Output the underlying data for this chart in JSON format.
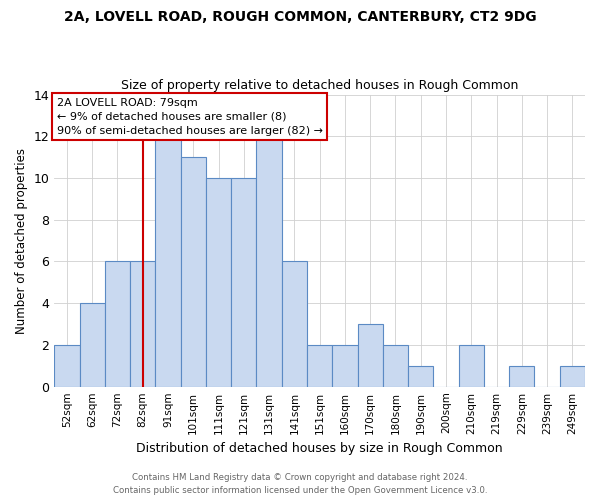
{
  "title": "2A, LOVELL ROAD, ROUGH COMMON, CANTERBURY, CT2 9DG",
  "subtitle": "Size of property relative to detached houses in Rough Common",
  "xlabel": "Distribution of detached houses by size in Rough Common",
  "ylabel": "Number of detached properties",
  "bar_labels": [
    "52sqm",
    "62sqm",
    "72sqm",
    "82sqm",
    "91sqm",
    "101sqm",
    "111sqm",
    "121sqm",
    "131sqm",
    "141sqm",
    "151sqm",
    "160sqm",
    "170sqm",
    "180sqm",
    "190sqm",
    "200sqm",
    "210sqm",
    "219sqm",
    "229sqm",
    "239sqm",
    "249sqm"
  ],
  "bar_heights": [
    2,
    4,
    6,
    6,
    12,
    11,
    10,
    10,
    12,
    6,
    2,
    2,
    3,
    2,
    1,
    0,
    2,
    0,
    1,
    0,
    1
  ],
  "bar_color": "#c9d9f0",
  "bar_edgecolor": "#5b8ac4",
  "vline_x": 3,
  "vline_color": "#cc0000",
  "ylim": [
    0,
    14
  ],
  "yticks": [
    0,
    2,
    4,
    6,
    8,
    10,
    12,
    14
  ],
  "annotation_title": "2A LOVELL ROAD: 79sqm",
  "annotation_line1": "← 9% of detached houses are smaller (8)",
  "annotation_line2": "90% of semi-detached houses are larger (82) →",
  "annotation_box_color": "#ffffff",
  "annotation_box_edgecolor": "#cc0000",
  "footer_line1": "Contains HM Land Registry data © Crown copyright and database right 2024.",
  "footer_line2": "Contains public sector information licensed under the Open Government Licence v3.0.",
  "background_color": "#ffffff",
  "grid_color": "#d0d0d0"
}
